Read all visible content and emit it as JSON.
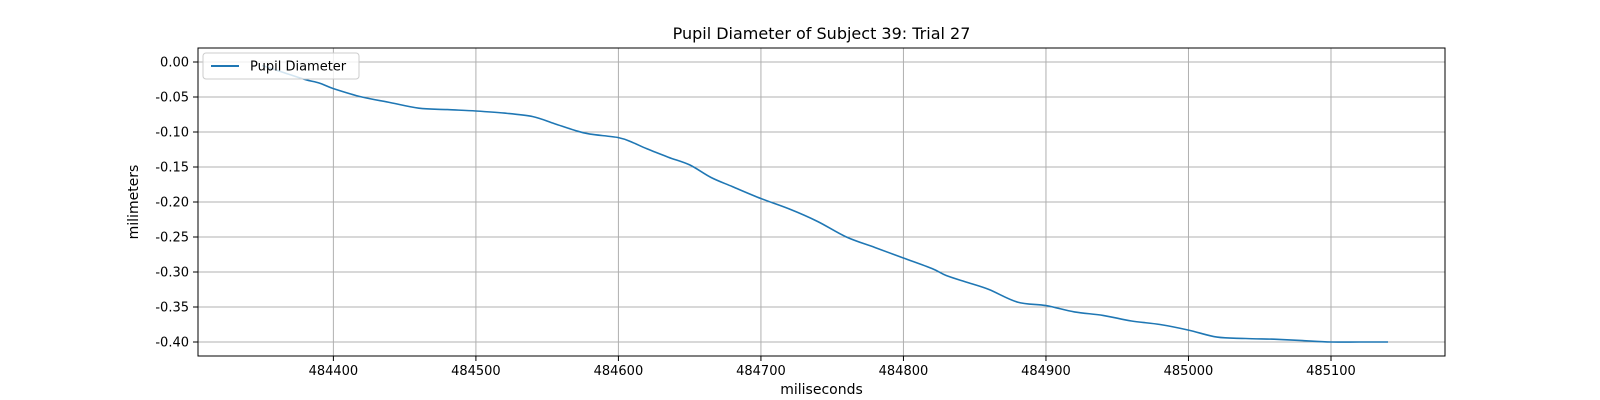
{
  "chart_data": {
    "type": "line",
    "title": "Pupil Diameter of Subject 39: Trial 27",
    "xlabel": "miliseconds",
    "ylabel": "milimeters",
    "xlim": [
      484305,
      485180
    ],
    "ylim": [
      -0.42,
      0.02
    ],
    "xticks": [
      484400,
      484500,
      484600,
      484700,
      484800,
      484900,
      485000,
      485100
    ],
    "xtick_labels": [
      "484400",
      "484500",
      "484600",
      "484700",
      "484800",
      "484900",
      "485000",
      "485100"
    ],
    "yticks": [
      0.0,
      -0.05,
      -0.1,
      -0.15,
      -0.2,
      -0.25,
      -0.3,
      -0.35,
      -0.4
    ],
    "ytick_labels": [
      "0.00",
      "-0.05",
      "-0.10",
      "-0.15",
      "-0.20",
      "-0.25",
      "-0.30",
      "-0.35",
      "-0.40"
    ],
    "grid": true,
    "legend_position": "top-left",
    "line_color": "#1f77b4",
    "series": [
      {
        "name": "Pupil Diameter",
        "x": [
          484350,
          484365,
          484380,
          484390,
          484400,
          484420,
          484440,
          484460,
          484480,
          484500,
          484520,
          484540,
          484555,
          484570,
          484580,
          484600,
          484610,
          484620,
          484635,
          484650,
          484665,
          484680,
          484700,
          484720,
          484740,
          484760,
          484780,
          484800,
          484820,
          484830,
          484845,
          484860,
          484880,
          484900,
          484920,
          484940,
          484960,
          484980,
          485000,
          485020,
          485040,
          485060,
          485080,
          485100,
          485120,
          485140
        ],
        "y": [
          -0.005,
          -0.015,
          -0.025,
          -0.03,
          -0.038,
          -0.05,
          -0.058,
          -0.066,
          -0.068,
          -0.07,
          -0.073,
          -0.078,
          -0.088,
          -0.098,
          -0.103,
          -0.108,
          -0.115,
          -0.124,
          -0.136,
          -0.147,
          -0.165,
          -0.178,
          -0.195,
          -0.21,
          -0.228,
          -0.25,
          -0.265,
          -0.28,
          -0.295,
          -0.305,
          -0.315,
          -0.325,
          -0.343,
          -0.348,
          -0.357,
          -0.362,
          -0.37,
          -0.375,
          -0.383,
          -0.393,
          -0.395,
          -0.396,
          -0.398,
          -0.4,
          -0.4,
          -0.4
        ]
      }
    ]
  }
}
